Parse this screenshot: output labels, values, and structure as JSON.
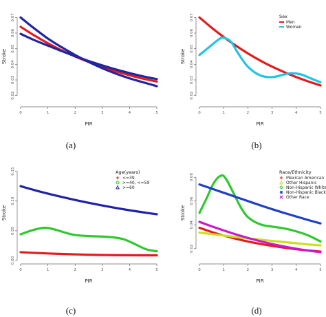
{
  "chart_data": [
    {
      "id": "a",
      "type": "line",
      "caption": "(a)",
      "xlabel": "PIR",
      "ylabel": "Stroke",
      "xlim": [
        0,
        5
      ],
      "ylim": [
        0.015,
        0.075
      ],
      "xticks": [
        "0",
        "1",
        "2",
        "3",
        "4",
        "5"
      ],
      "yticks": [
        {
          "v": 0.02,
          "t": "0.02"
        },
        {
          "v": 0.03,
          "t": "0.03"
        },
        {
          "v": 0.04,
          "t": "0.04"
        },
        {
          "v": 0.05,
          "t": "0.05"
        },
        {
          "v": 0.06,
          "t": "0.06"
        },
        {
          "v": 0.07,
          "t": "0.07"
        }
      ],
      "series": [
        {
          "color": "#e41a1c",
          "x": [
            0,
            0.5,
            1,
            1.5,
            2,
            2.5,
            3,
            3.5,
            4,
            4.5,
            5
          ],
          "y": [
            0.064,
            0.0585,
            0.0535,
            0.049,
            0.045,
            0.0415,
            0.0383,
            0.0355,
            0.033,
            0.0308,
            0.029
          ]
        },
        {
          "color": "#2025a0",
          "x": [
            0,
            0.5,
            1,
            1.5,
            2,
            2.5,
            3,
            3.5,
            4,
            4.5,
            5
          ],
          "y": [
            0.07,
            0.063,
            0.0565,
            0.051,
            0.046,
            0.0415,
            0.0375,
            0.034,
            0.031,
            0.0285,
            0.026
          ]
        },
        {
          "color": "#2025a0",
          "x": [
            0,
            0.5,
            1,
            1.5,
            2,
            2.5,
            3,
            3.5,
            4,
            4.5,
            5
          ],
          "y": [
            0.0595,
            0.0555,
            0.052,
            0.0485,
            0.0452,
            0.0421,
            0.0393,
            0.0367,
            0.0344,
            0.0323,
            0.0305
          ]
        }
      ]
    },
    {
      "id": "b",
      "type": "line",
      "caption": "(b)",
      "xlabel": "PIR",
      "ylabel": "Stroke",
      "xlim": [
        0,
        5
      ],
      "ylim": [
        0.015,
        0.075
      ],
      "xticks": [
        "0",
        "1",
        "2",
        "3",
        "4",
        "5"
      ],
      "yticks": [
        {
          "v": 0.02,
          "t": "0.02"
        },
        {
          "v": 0.03,
          "t": "0.03"
        },
        {
          "v": 0.04,
          "t": "0.04"
        },
        {
          "v": 0.05,
          "t": "0.05"
        },
        {
          "v": 0.06,
          "t": "0.06"
        },
        {
          "v": 0.07,
          "t": "0.07"
        }
      ],
      "legend": {
        "title": "Sex",
        "position": "top-right"
      },
      "series": [
        {
          "name": "Men",
          "color": "#e41a1c",
          "x": [
            0,
            0.5,
            1,
            1.5,
            2,
            2.5,
            3,
            3.5,
            4,
            4.5,
            5
          ],
          "y": [
            0.07,
            0.0635,
            0.0575,
            0.052,
            0.047,
            0.0425,
            0.0385,
            0.035,
            0.0318,
            0.029,
            0.0265
          ]
        },
        {
          "name": "Women",
          "color": "#1fc4e6",
          "x": [
            0,
            0.4,
            0.8,
            1.0,
            1.3,
            1.6,
            2.0,
            2.5,
            3.0,
            3.5,
            3.8,
            4.2,
            4.6,
            5
          ],
          "y": [
            0.046,
            0.051,
            0.056,
            0.057,
            0.0545,
            0.047,
            0.0385,
            0.033,
            0.0318,
            0.0335,
            0.0343,
            0.0335,
            0.031,
            0.0285
          ]
        }
      ]
    },
    {
      "id": "c",
      "type": "line",
      "caption": "(c)",
      "xlabel": "PIR",
      "ylabel": "Stroke",
      "xlim": [
        0,
        5
      ],
      "ylim": [
        0.0,
        0.16
      ],
      "xticks": [
        "0",
        "1",
        "2",
        "3",
        "4",
        "5"
      ],
      "yticks": [
        {
          "v": 0.0,
          "t": "0.00"
        },
        {
          "v": 0.05,
          "t": "0.05"
        },
        {
          "v": 0.1,
          "t": "0.10"
        },
        {
          "v": 0.15,
          "t": "0.15"
        }
      ],
      "legend": {
        "title": "Age(years)",
        "position": "top-right"
      },
      "series": [
        {
          "name": "<=39",
          "marker": "+",
          "color": "#e41a1c",
          "x": [
            0,
            0.5,
            1,
            1.5,
            2,
            2.5,
            3,
            3.5,
            4,
            4.5,
            5
          ],
          "y": [
            0.014,
            0.0128,
            0.0118,
            0.011,
            0.0103,
            0.0097,
            0.0093,
            0.009,
            0.0088,
            0.0087,
            0.0087
          ]
        },
        {
          "name": ">=40, <=59",
          "marker": "o",
          "color": "#2ec92e",
          "x": [
            0,
            0.4,
            0.8,
            1.0,
            1.3,
            1.7,
            2.0,
            2.5,
            3.0,
            3.4,
            3.8,
            4.2,
            4.6,
            5
          ],
          "y": [
            0.044,
            0.0505,
            0.0548,
            0.0548,
            0.0515,
            0.046,
            0.0428,
            0.041,
            0.0403,
            0.039,
            0.0355,
            0.0275,
            0.019,
            0.0155
          ]
        },
        {
          "name": ">=60",
          "marker": "triangle",
          "color": "#1f22a8",
          "x": [
            0,
            0.5,
            1,
            1.5,
            2,
            2.5,
            3,
            3.5,
            4,
            4.5,
            5
          ],
          "y": [
            0.125,
            0.1185,
            0.1125,
            0.107,
            0.1018,
            0.097,
            0.0925,
            0.0883,
            0.0845,
            0.081,
            0.0778
          ]
        }
      ]
    },
    {
      "id": "d",
      "type": "line",
      "caption": "(d)",
      "xlabel": "PIR",
      "ylabel": "Stroke",
      "xlim": [
        0,
        5
      ],
      "ylim": [
        0.01,
        0.09
      ],
      "xticks": [
        "0",
        "1",
        "2",
        "3",
        "4",
        "5"
      ],
      "yticks": [
        {
          "v": 0.02,
          "t": "0.02"
        },
        {
          "v": 0.04,
          "t": "0.04"
        },
        {
          "v": 0.06,
          "t": "0.06"
        },
        {
          "v": 0.08,
          "t": "0.08"
        }
      ],
      "legend": {
        "title": "Race/Ethnicity",
        "position": "top-right"
      },
      "series": [
        {
          "name": "Mexican American",
          "marker": "+",
          "color": "#e41a1c",
          "x": [
            0,
            0.5,
            1,
            1.5,
            2,
            2.5,
            3,
            3.5,
            4,
            4.5,
            5
          ],
          "y": [
            0.0375,
            0.034,
            0.031,
            0.0283,
            0.026,
            0.024,
            0.0223,
            0.0208,
            0.0195,
            0.0184,
            0.0175
          ]
        },
        {
          "name": "Other Hispanic",
          "marker": "triangle",
          "color": "#c8e020",
          "x": [
            0,
            0.5,
            1,
            1.5,
            2,
            2.5,
            3,
            3.5,
            4,
            4.5,
            5
          ],
          "y": [
            0.0335,
            0.0322,
            0.031,
            0.0298,
            0.0287,
            0.0276,
            0.0265,
            0.0255,
            0.0245,
            0.0235,
            0.0227
          ]
        },
        {
          "name": "Non-Hispanic White",
          "marker": "diamond",
          "color": "#2ec92e",
          "x": [
            0,
            0.3,
            0.6,
            0.9,
            1.1,
            1.4,
            1.7,
            2.0,
            2.5,
            3.0,
            3.5,
            4.0,
            4.5,
            5
          ],
          "y": [
            0.05,
            0.0625,
            0.0755,
            0.0815,
            0.0785,
            0.067,
            0.055,
            0.0465,
            0.0405,
            0.0385,
            0.037,
            0.0345,
            0.031,
            0.026
          ]
        },
        {
          "name": "Non-Hispanic Black",
          "marker": "cross",
          "color": "#1f3fc8",
          "x": [
            0,
            0.5,
            1,
            1.5,
            2,
            2.5,
            3,
            3.5,
            4,
            4.5,
            5
          ],
          "y": [
            0.074,
            0.0705,
            0.067,
            0.0635,
            0.06,
            0.0565,
            0.0532,
            0.05,
            0.047,
            0.044,
            0.0412
          ]
        },
        {
          "name": "Other Race",
          "marker": "x",
          "color": "#cc18cc",
          "x": [
            0,
            0.5,
            1,
            1.5,
            2,
            2.5,
            3,
            3.5,
            4,
            4.5,
            5
          ],
          "y": [
            0.0425,
            0.0388,
            0.0353,
            0.032,
            0.029,
            0.0263,
            0.0239,
            0.0218,
            0.0199,
            0.0183,
            0.017
          ]
        }
      ]
    }
  ]
}
